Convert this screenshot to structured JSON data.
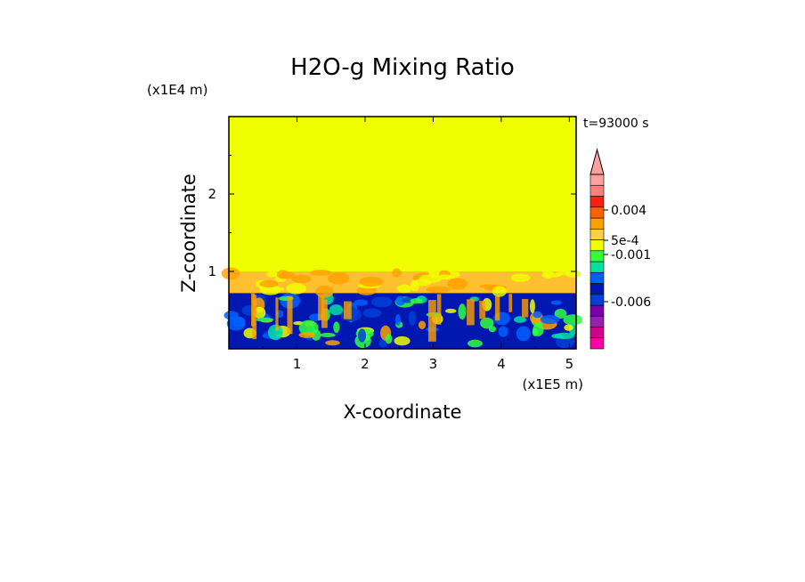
{
  "chart_data": {
    "type": "heatmap",
    "title": "H2O-g Mixing Ratio",
    "xlabel": "X-coordinate",
    "ylabel": "Z-coordinate",
    "x_unit": "(x1E5 m)",
    "y_unit": "(x1E4 m)",
    "time_label": "t=93000 s",
    "xlim": [
      0,
      5.1
    ],
    "ylim": [
      0,
      3.0
    ],
    "x_ticks": [
      "1",
      "2",
      "3",
      "4",
      "5"
    ],
    "y_ticks": [
      "1",
      "2"
    ],
    "colorbar": {
      "labels": [
        "0.004",
        "5e-4",
        "-0.001",
        "-0.006"
      ],
      "colors": [
        "#ff00aa",
        "#d0008a",
        "#9a1fb0",
        "#7a00a8",
        "#003fd8",
        "#0018b0",
        "#0060ff",
        "#00e0a0",
        "#30ff40",
        "#f0ff00",
        "#ffd040",
        "#ffa000",
        "#ff6000",
        "#ff2010",
        "#ff8080",
        "#ffa0a0"
      ],
      "extend": "max"
    },
    "regions": [
      {
        "name": "upper",
        "z_range": [
          1.0,
          3.0
        ],
        "value_level": "5e-4 to 0.001",
        "color": "#f0ff00"
      },
      {
        "name": "transition",
        "z_range": [
          0.72,
          1.0
        ],
        "value_level": "around 0.001 to 0.004",
        "color": "#ffc030"
      },
      {
        "name": "lower",
        "z_range": [
          0.0,
          0.72
        ],
        "value_level": "-0.001 to -0.006",
        "color": "#0018b0"
      }
    ]
  },
  "colors": {
    "field_high": "#f0ff00",
    "field_mid": "#ffc030",
    "field_low": "#0018b0"
  }
}
